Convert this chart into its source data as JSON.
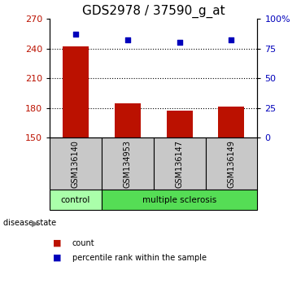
{
  "title": "GDS2978 / 37590_g_at",
  "samples": [
    "GSM136140",
    "GSM134953",
    "GSM136147",
    "GSM136149"
  ],
  "counts": [
    242,
    185,
    177,
    181
  ],
  "percentiles": [
    87,
    82,
    80,
    82
  ],
  "ylim_left": [
    150,
    270
  ],
  "ylim_right": [
    0,
    100
  ],
  "yticks_left": [
    150,
    180,
    210,
    240,
    270
  ],
  "yticks_right": [
    0,
    25,
    50,
    75,
    100
  ],
  "ytick_labels_right": [
    "0",
    "25",
    "50",
    "75",
    "100%"
  ],
  "bar_color": "#bb1100",
  "dot_color": "#0000bb",
  "legend_items": [
    "count",
    "percentile rank within the sample"
  ],
  "legend_colors": [
    "#bb1100",
    "#0000bb"
  ],
  "xlabel_gray_bg": "#c8c8c8",
  "control_color": "#aaffaa",
  "ms_color": "#55dd55",
  "title_fontsize": 11,
  "tick_fontsize": 8,
  "bar_width": 0.5
}
